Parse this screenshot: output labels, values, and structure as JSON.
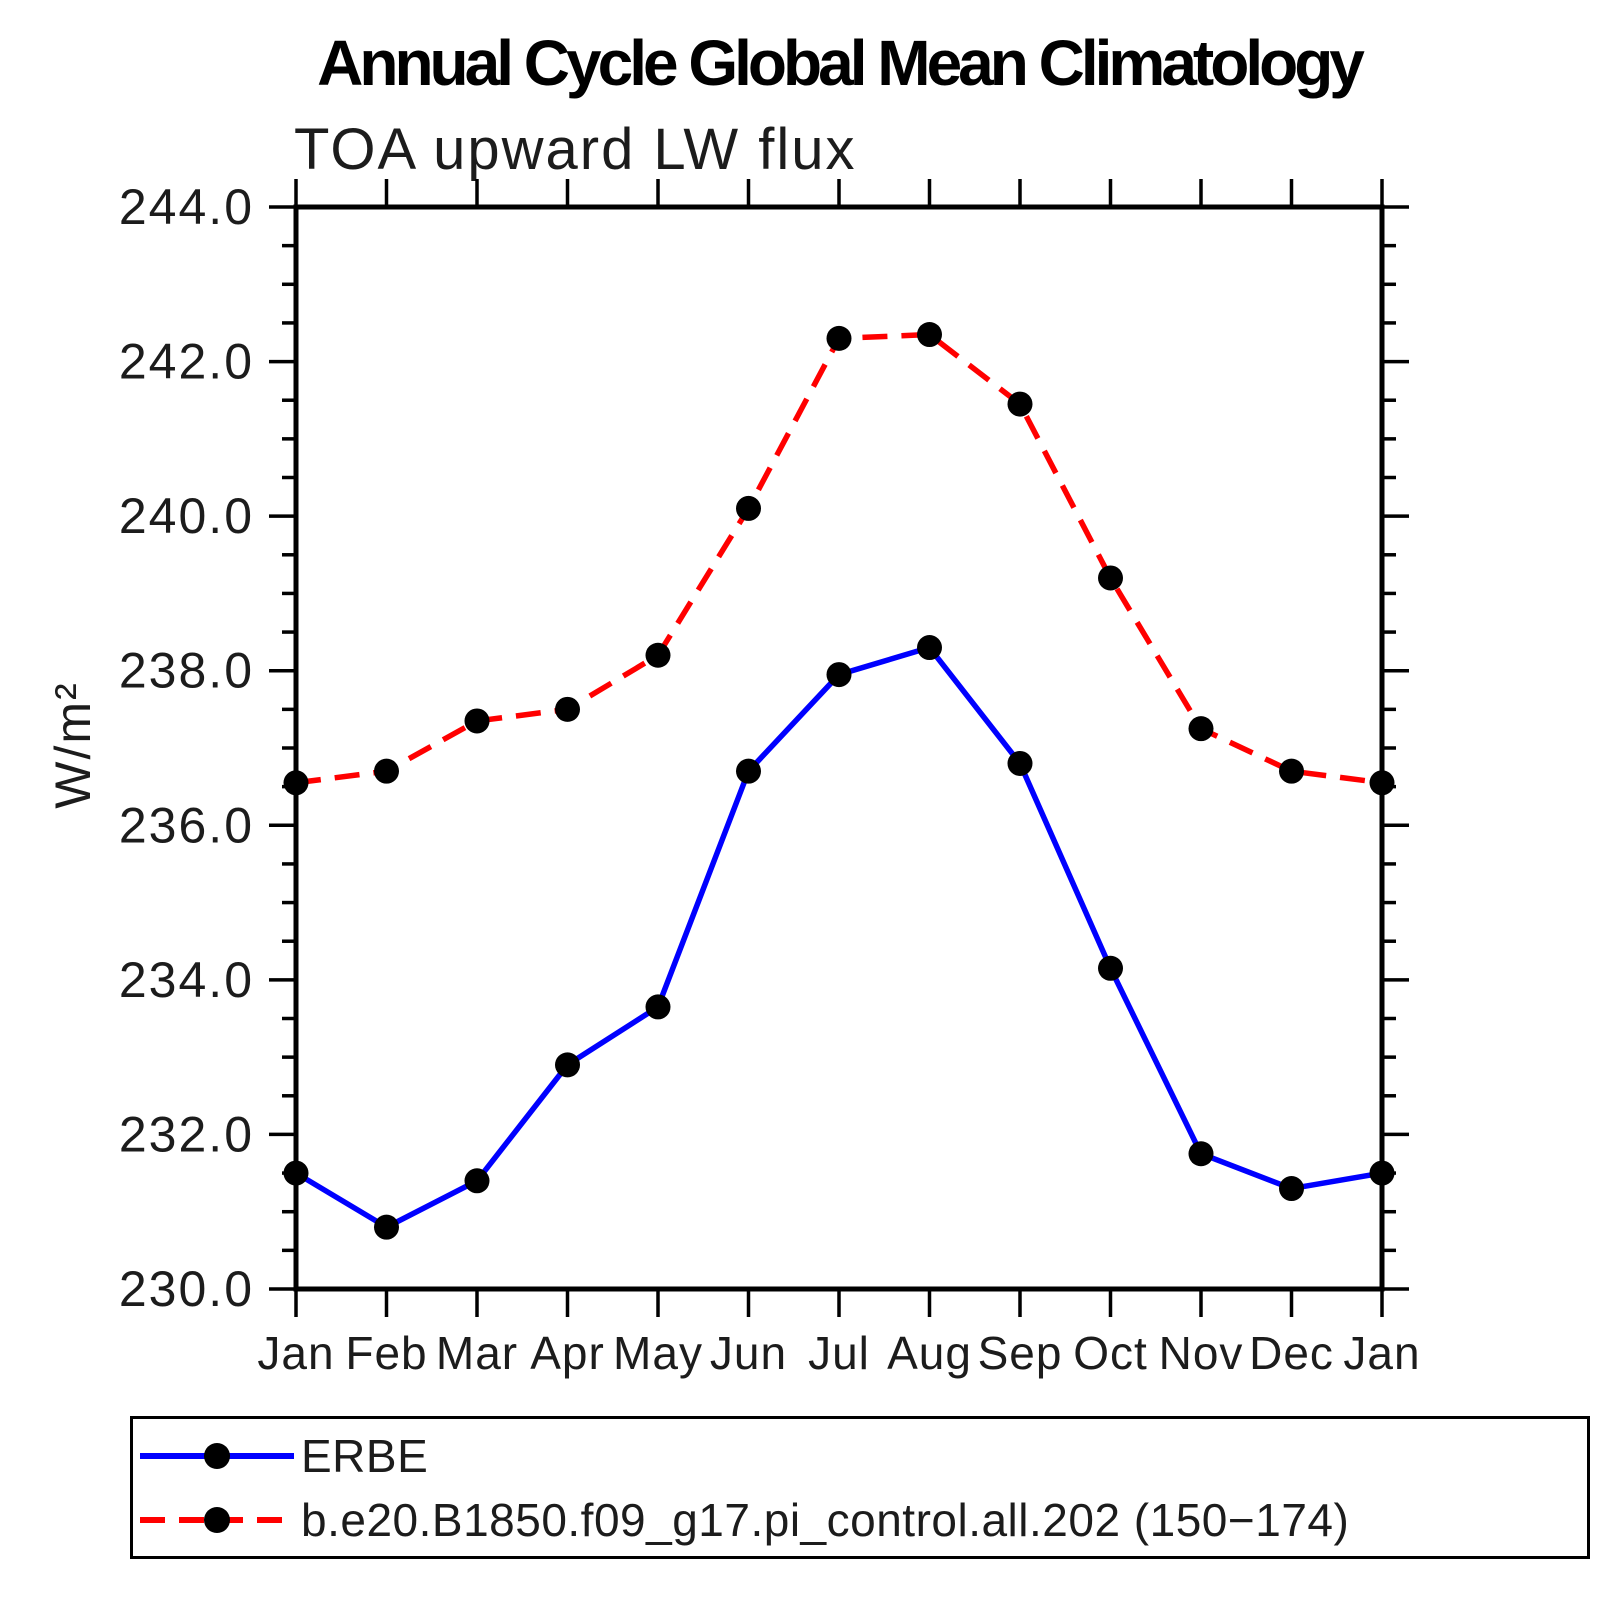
{
  "chart_data": {
    "type": "line",
    "title": "Annual Cycle Global Mean Climatology",
    "subtitle": "TOA upward LW flux",
    "ylabel": "W/m²",
    "xlabel": "",
    "categories": [
      "Jan",
      "Feb",
      "Mar",
      "Apr",
      "May",
      "Jun",
      "Jul",
      "Aug",
      "Sep",
      "Oct",
      "Nov",
      "Dec",
      "Jan"
    ],
    "ylim": [
      230.0,
      244.0
    ],
    "ytick_major_step": 2.0,
    "ytick_minor_step": 0.5,
    "grid": false,
    "legend_position": "bottom-left-box",
    "axis_color": "#000000",
    "series": [
      {
        "name": "ERBE",
        "color": "#0000ff",
        "line_style": "solid",
        "marker": "filled-circle",
        "marker_color": "#000000",
        "values": [
          231.5,
          230.8,
          231.4,
          232.9,
          233.65,
          236.7,
          237.95,
          238.3,
          236.8,
          234.15,
          231.75,
          231.3,
          231.5
        ]
      },
      {
        "name": "b.e20.B1850.f09_g17.pi_control.all.202 (150−174)",
        "color": "#ff0000",
        "line_style": "dashed",
        "marker": "filled-circle",
        "marker_color": "#000000",
        "values": [
          236.55,
          236.7,
          237.35,
          237.5,
          238.2,
          240.1,
          242.3,
          242.35,
          241.45,
          239.2,
          237.25,
          236.7,
          236.55
        ]
      }
    ]
  }
}
